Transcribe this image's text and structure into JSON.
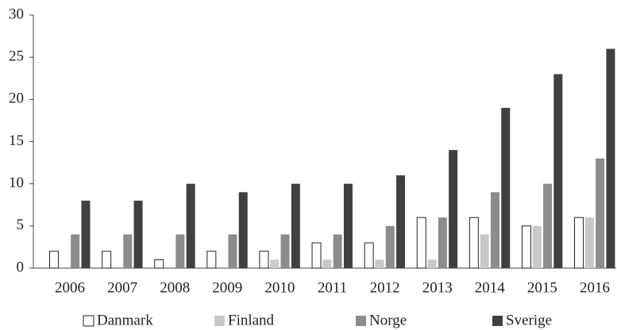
{
  "chart_data": {
    "type": "bar",
    "categories": [
      "2006",
      "2007",
      "2008",
      "2009",
      "2010",
      "2011",
      "2012",
      "2013",
      "2014",
      "2015",
      "2016"
    ],
    "series": [
      {
        "name": "Danmark",
        "color": "#ffffff",
        "values": [
          2,
          2,
          1,
          2,
          2,
          3,
          3,
          6,
          6,
          5,
          6
        ]
      },
      {
        "name": "Finland",
        "color": "#c8c8c8",
        "values": [
          0,
          0,
          0,
          0,
          1,
          1,
          1,
          1,
          4,
          5,
          6
        ]
      },
      {
        "name": "Norge",
        "color": "#8c8c8c",
        "values": [
          4,
          4,
          4,
          4,
          4,
          4,
          5,
          6,
          9,
          10,
          13
        ]
      },
      {
        "name": "Sverige",
        "color": "#404040",
        "values": [
          8,
          8,
          10,
          9,
          10,
          10,
          11,
          14,
          19,
          23,
          26
        ]
      }
    ],
    "ylim": [
      0,
      30
    ],
    "yticks": [
      0,
      5,
      10,
      15,
      20,
      25,
      30
    ],
    "grid": false,
    "legend": "bottom"
  }
}
